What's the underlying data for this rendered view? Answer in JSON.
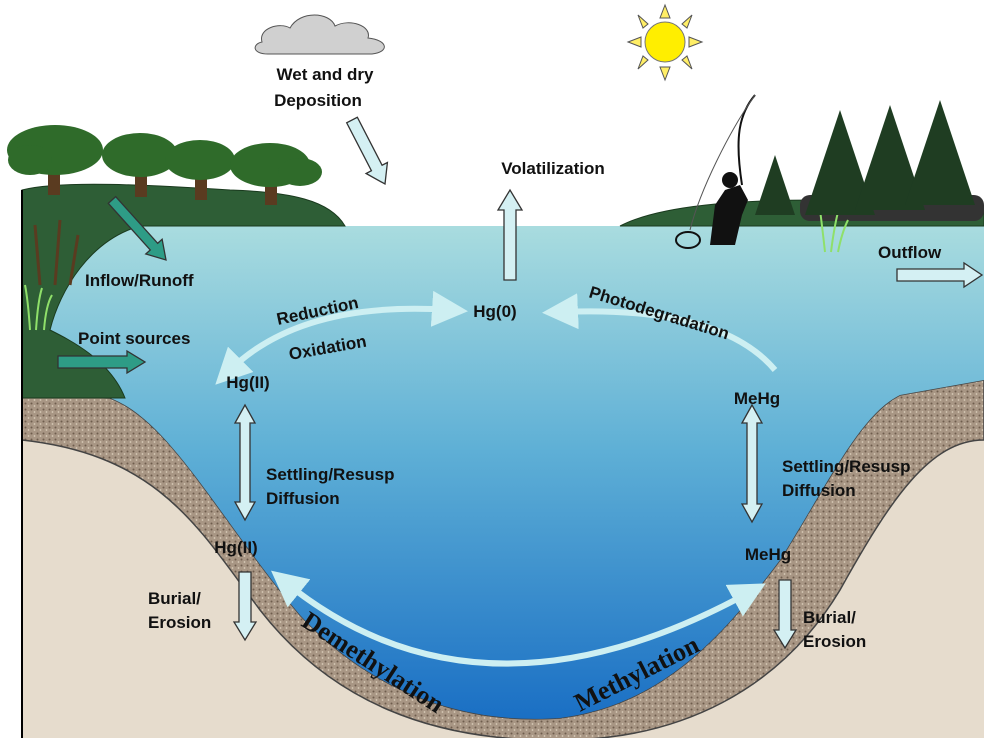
{
  "labels": {
    "deposition": [
      "Wet and dry",
      "Deposition"
    ],
    "volatilization": "Volatilization",
    "inflow": "Inflow/Runoff",
    "outflow": "Outflow",
    "point_sources": "Point sources",
    "reduction": "Reduction",
    "oxidation": "Oxidation",
    "hg0": "Hg(0)",
    "photodegradation": "Photodegradation",
    "hg2_water": "Hg(II)",
    "mehg_water": "MeHg",
    "settling_left": [
      "Settling/Resusp",
      "Diffusion"
    ],
    "settling_right": [
      "Settling/Resusp",
      "Diffusion"
    ],
    "hg2_sediment": "Hg(II)",
    "mehg_sediment": "MeHg",
    "burial_left": [
      "Burial/",
      "Erosion"
    ],
    "burial_right": [
      "Burial/",
      "Erosion"
    ],
    "demethylation": "Demethylation",
    "methylation": "Methylation"
  }
}
